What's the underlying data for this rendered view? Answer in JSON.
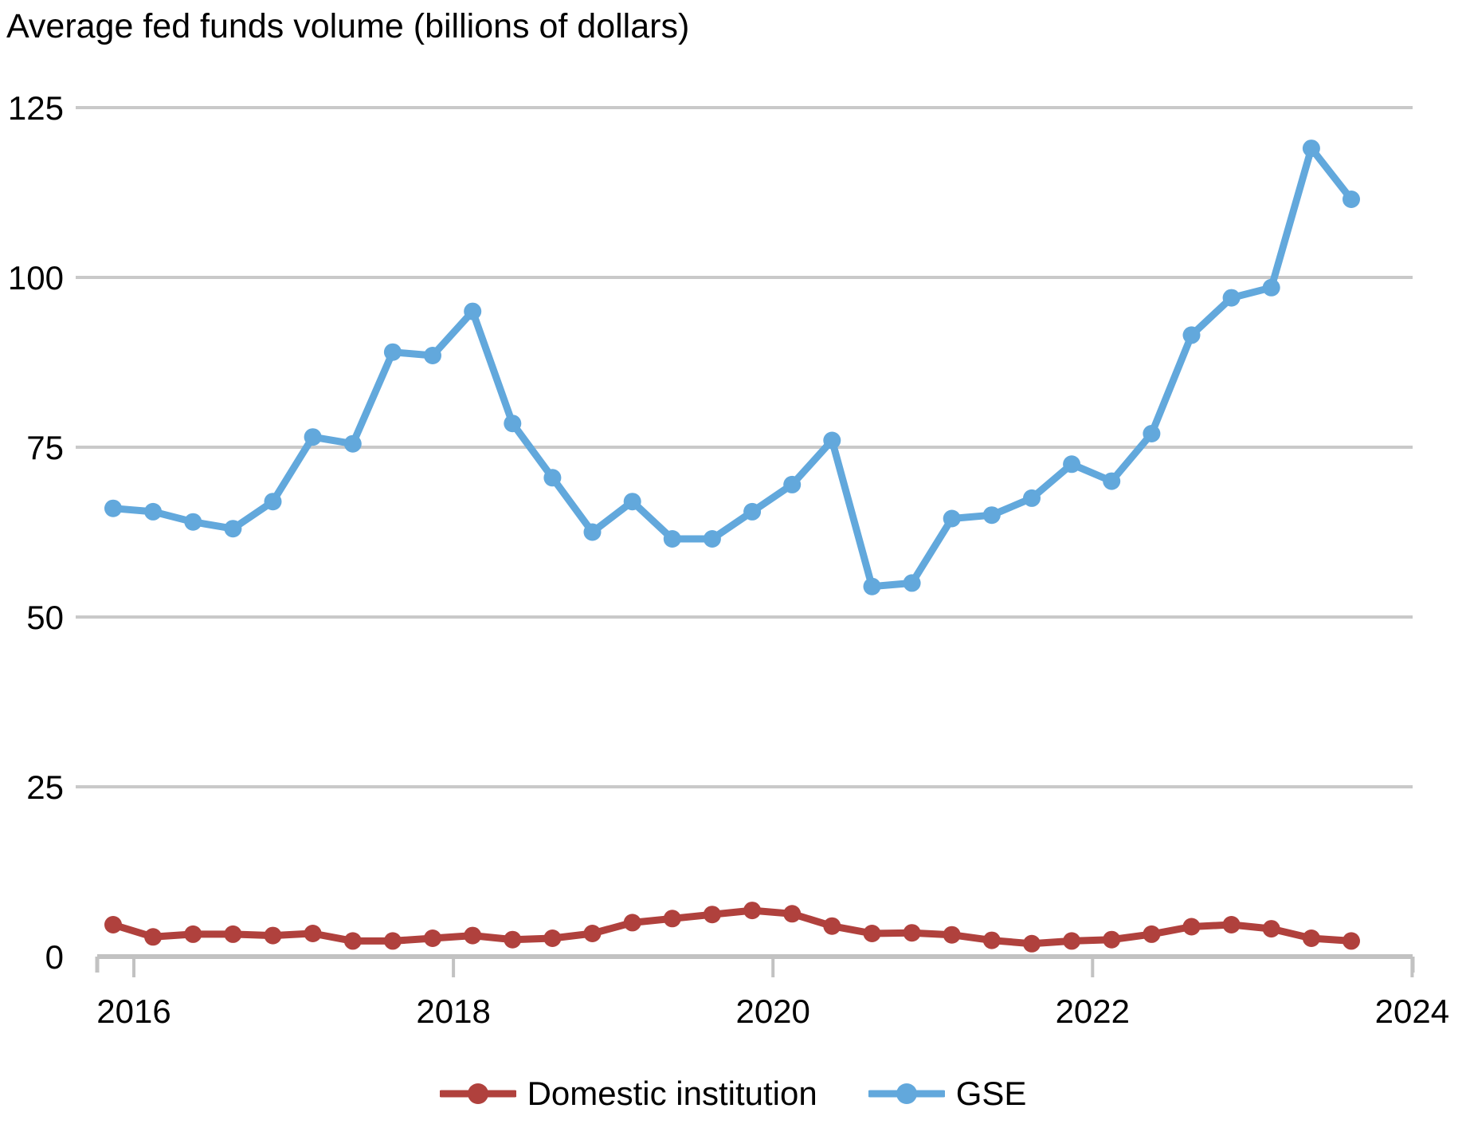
{
  "title": "Average fed funds volume (billions of dollars)",
  "colors": {
    "domestic": "#b0413d",
    "gse": "#62a8dc",
    "gridline": "#c9c9c9",
    "axis": "#c2c2c2",
    "text": "#000000"
  },
  "legend": [
    {
      "label": "Domestic institution",
      "series": "domestic"
    },
    {
      "label": "GSE",
      "series": "gse"
    }
  ],
  "chart_data": {
    "type": "line",
    "title": "Average fed funds volume (billions of dollars)",
    "xlabel": "",
    "ylabel": "Average fed funds volume (billions of dollars)",
    "ylim": [
      0,
      125
    ],
    "y_ticks": [
      0,
      25,
      50,
      75,
      100,
      125
    ],
    "y_tick_labels": [
      "0",
      "25",
      "50",
      "75",
      "100",
      "125"
    ],
    "x_tick_labels": [
      "2016",
      "2018",
      "2020",
      "2022",
      "2024"
    ],
    "grid": "horizontal",
    "legend_position": "bottom",
    "frequency": "quarterly",
    "quarters": [
      "2015 Q4",
      "2016 Q1",
      "2016 Q2",
      "2016 Q3",
      "2016 Q4",
      "2017 Q1",
      "2017 Q2",
      "2017 Q3",
      "2017 Q4",
      "2018 Q1",
      "2018 Q2",
      "2018 Q3",
      "2018 Q4",
      "2019 Q1",
      "2019 Q2",
      "2019 Q3",
      "2019 Q4",
      "2020 Q1",
      "2020 Q2",
      "2020 Q3",
      "2020 Q4",
      "2021 Q1",
      "2021 Q2",
      "2021 Q3",
      "2021 Q4",
      "2022 Q1",
      "2022 Q2",
      "2022 Q3",
      "2022 Q4",
      "2023 Q1",
      "2023 Q2",
      "2023 Q3"
    ],
    "series": [
      {
        "name": "Domestic institution",
        "color": "#b0413d",
        "values": [
          4.7,
          2.9,
          3.3,
          3.3,
          3.1,
          3.4,
          2.3,
          2.3,
          2.7,
          3.1,
          2.5,
          2.7,
          3.4,
          5.0,
          5.6,
          6.2,
          6.8,
          6.3,
          4.5,
          3.4,
          3.5,
          3.2,
          2.4,
          1.9,
          2.3,
          2.5,
          3.3,
          4.4,
          4.7,
          4.1,
          2.7,
          2.3
        ]
      },
      {
        "name": "GSE",
        "color": "#62a8dc",
        "values": [
          66,
          65.5,
          64,
          63,
          67,
          76.5,
          75.5,
          89,
          88.5,
          95,
          78.5,
          70.5,
          62.5,
          67,
          61.5,
          61.5,
          65.5,
          69.5,
          76,
          54.5,
          55,
          64.5,
          65,
          67.5,
          72.5,
          70,
          77,
          91.5,
          97,
          98.5,
          119,
          111.5
        ]
      }
    ]
  }
}
